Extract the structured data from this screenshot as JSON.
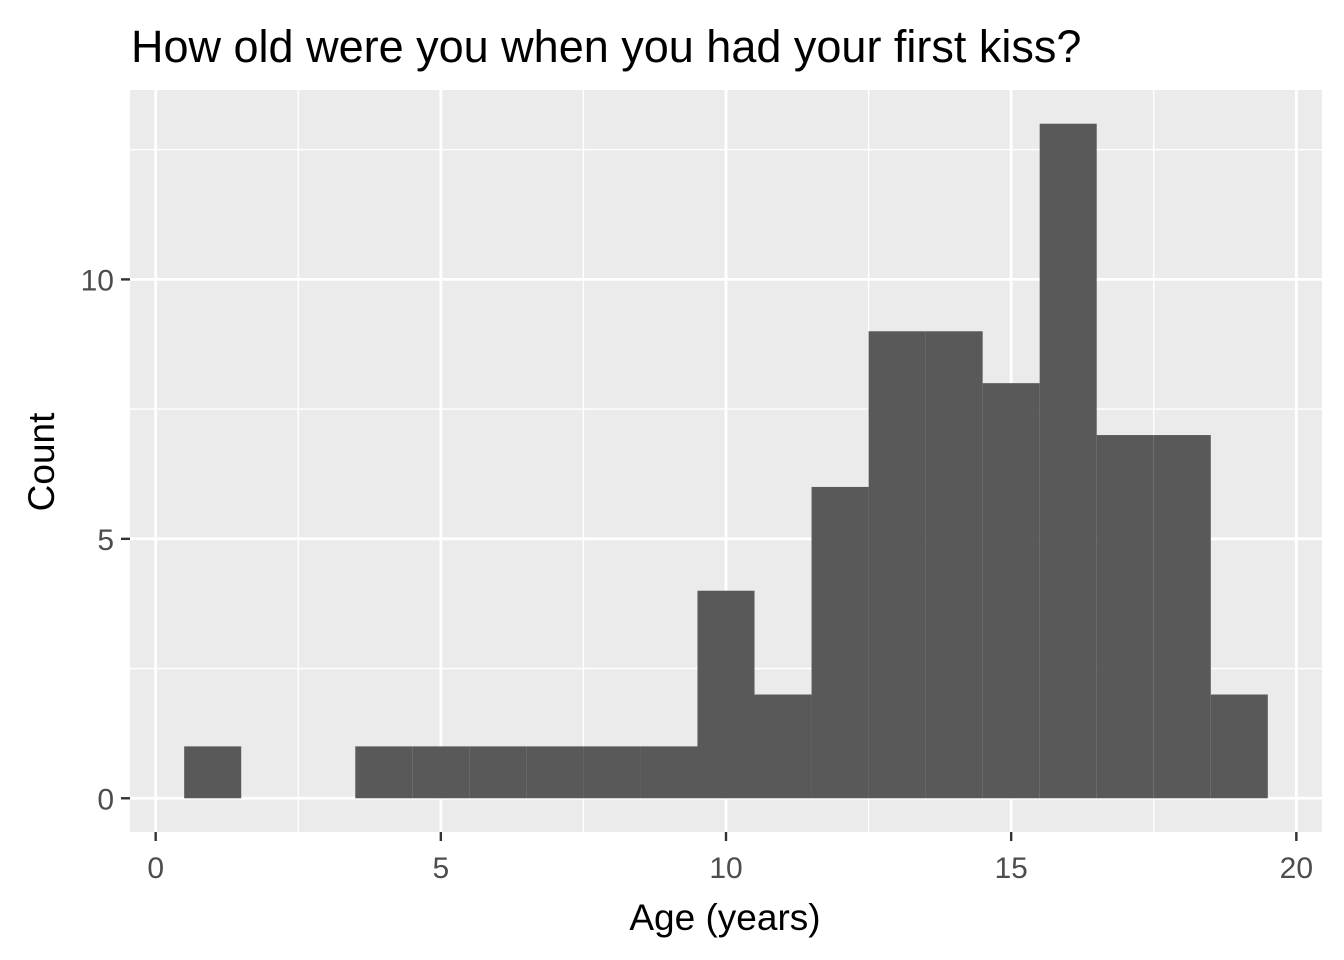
{
  "chart_data": {
    "type": "bar",
    "subtype": "histogram",
    "title": "How old were you when you had your first kiss?",
    "xlabel": "Age (years)",
    "ylabel": "Count",
    "binwidth": 1,
    "bins": [
      {
        "x": 1,
        "count": 1
      },
      {
        "x": 2,
        "count": 0
      },
      {
        "x": 3,
        "count": 0
      },
      {
        "x": 4,
        "count": 1
      },
      {
        "x": 5,
        "count": 1
      },
      {
        "x": 6,
        "count": 1
      },
      {
        "x": 7,
        "count": 1
      },
      {
        "x": 8,
        "count": 1
      },
      {
        "x": 9,
        "count": 1
      },
      {
        "x": 10,
        "count": 4
      },
      {
        "x": 11,
        "count": 2
      },
      {
        "x": 12,
        "count": 6
      },
      {
        "x": 13,
        "count": 9
      },
      {
        "x": 14,
        "count": 9
      },
      {
        "x": 15,
        "count": 8
      },
      {
        "x": 16,
        "count": 13
      },
      {
        "x": 17,
        "count": 7
      },
      {
        "x": 18,
        "count": 7
      },
      {
        "x": 19,
        "count": 2
      }
    ],
    "xlim": [
      -0.45,
      20.45
    ],
    "ylim": [
      -0.65,
      13.65
    ],
    "x_ticks": [
      0,
      5,
      10,
      15,
      20
    ],
    "x_tick_labels": [
      "0",
      "5",
      "10",
      "15",
      "20"
    ],
    "y_ticks": [
      0,
      5,
      10
    ],
    "y_tick_labels": [
      "0",
      "5",
      "10"
    ],
    "grid": true,
    "legend": "none",
    "colors": {
      "panel_background": "#ebebeb",
      "grid": "#ffffff",
      "bar_fill": "#595959",
      "tick_label": "#4d4d4d",
      "tick_mark": "#333333"
    }
  }
}
